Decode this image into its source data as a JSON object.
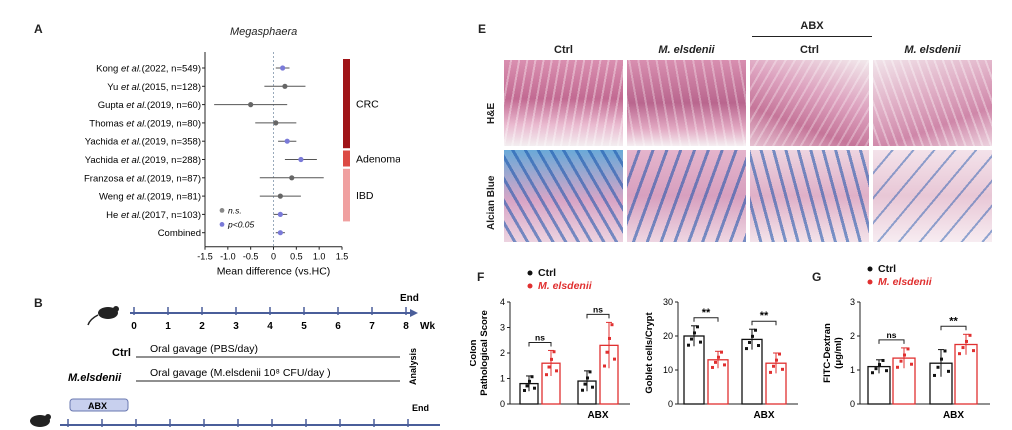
{
  "panelA": {
    "label": "A",
    "title": "Megasphaera",
    "studies": [
      {
        "pre": "Kong ",
        "etal": "et al.",
        "post": "(2022, n=549)",
        "mean": 0.2,
        "lo": 0.05,
        "hi": 0.35,
        "sig": true
      },
      {
        "pre": "Yu ",
        "etal": "et al.",
        "post": "(2015, n=128)",
        "mean": 0.25,
        "lo": -0.2,
        "hi": 0.7,
        "sig": false
      },
      {
        "pre": "Gupta ",
        "etal": "et al.",
        "post": "(2019, n=60)",
        "mean": -0.5,
        "lo": -1.3,
        "hi": 0.3,
        "sig": false
      },
      {
        "pre": "Thomas ",
        "etal": "et al.",
        "post": "(2019, n=80)",
        "mean": 0.05,
        "lo": -0.4,
        "hi": 0.5,
        "sig": false
      },
      {
        "pre": "Yachida ",
        "etal": "et al.",
        "post": "(2019, n=358)",
        "mean": 0.3,
        "lo": 0.1,
        "hi": 0.5,
        "sig": true
      },
      {
        "pre": "Yachida ",
        "etal": "et al.",
        "post": "(2019, n=288)",
        "mean": 0.6,
        "lo": 0.25,
        "hi": 0.95,
        "sig": true
      },
      {
        "pre": "Franzosa ",
        "etal": "et al.",
        "post": "(2019, n=87)",
        "mean": 0.4,
        "lo": -0.3,
        "hi": 1.1,
        "sig": false
      },
      {
        "pre": "Weng ",
        "etal": "et al.",
        "post": "(2019, n=81)",
        "mean": 0.15,
        "lo": -0.3,
        "hi": 0.6,
        "sig": false
      },
      {
        "pre": "He ",
        "etal": "et al.",
        "post": "(2017, n=103)",
        "mean": 0.15,
        "lo": 0.0,
        "hi": 0.3,
        "sig": true
      },
      {
        "pre": "Combined",
        "etal": "",
        "post": "",
        "mean": 0.15,
        "lo": 0.05,
        "hi": 0.25,
        "sig": true
      }
    ],
    "legend": [
      {
        "text": "n.s.",
        "color": "#888888"
      },
      {
        "text": "p<0.05",
        "color": "#7a7ad8"
      }
    ],
    "xlabel": "Mean difference (vs.HC)",
    "xticks": [
      "-1.5",
      "-1.0",
      "-0.5",
      "0",
      "0.5",
      "1.0",
      "1.5"
    ],
    "xrange": [
      -1.5,
      1.5
    ],
    "groups": [
      {
        "label": "CRC",
        "color": "#a01418",
        "from": 0,
        "to": 4
      },
      {
        "label": "Adenoma",
        "color": "#dc4a44",
        "from": 5,
        "to": 5
      },
      {
        "label": "IBD",
        "color": "#f0a0a0",
        "from": 6,
        "to": 8
      }
    ]
  },
  "panelB": {
    "label": "B",
    "end": "End",
    "wk": "Wk",
    "weeks": [
      "0",
      "1",
      "2",
      "3",
      "4",
      "5",
      "6",
      "7",
      "8"
    ],
    "ctrl_label": "Ctrl",
    "ctrl_text": "Oral gavage  (PBS/day)",
    "me_label": "M.elsdenii",
    "me_text": "Oral gavage  (M.elsdenii  10⁸ CFU/day )",
    "analysis": "Analysis",
    "abx": "ABX",
    "end2": "End"
  },
  "panelE": {
    "label": "E",
    "abx": "ABX",
    "cols": [
      "Ctrl",
      "M. elsdenii",
      "Ctrl",
      "M. elsdenii"
    ],
    "rows": [
      "H&E",
      "Alcian Blue"
    ]
  },
  "panelF": {
    "label": "F",
    "legend": [
      {
        "text": "Ctrl",
        "color": "#111111"
      },
      {
        "text": "M. elsdenii",
        "color": "#e03030"
      }
    ]
  },
  "panelG": {
    "label": "G",
    "legend": [
      {
        "text": "Ctrl",
        "color": "#111111"
      },
      {
        "text": "M. elsdenii",
        "color": "#e03030"
      }
    ]
  },
  "chart_data": [
    {
      "type": "bar",
      "ylabel": "Colon Pathological Score",
      "ylim": [
        0,
        4
      ],
      "yticks": [
        "0",
        "1",
        "2",
        "3",
        "4"
      ],
      "categories": [
        "",
        "ABX"
      ],
      "series": [
        {
          "name": "Ctrl",
          "color": "#111111",
          "values": [
            0.8,
            0.9
          ],
          "err": [
            0.3,
            0.4
          ]
        },
        {
          "name": "M. elsdenii",
          "color": "#e03030",
          "values": [
            1.6,
            2.3
          ],
          "err": [
            0.5,
            0.9
          ]
        }
      ],
      "annotations": [
        "ns",
        "ns"
      ]
    },
    {
      "type": "bar",
      "ylabel": "Goblet cells/Crypt",
      "ylim": [
        0,
        30
      ],
      "yticks": [
        "0",
        "10",
        "20",
        "30"
      ],
      "categories": [
        "",
        "ABX"
      ],
      "series": [
        {
          "name": "Ctrl",
          "color": "#111111",
          "values": [
            20,
            19
          ],
          "err": [
            3,
            3
          ]
        },
        {
          "name": "M. elsdenii",
          "color": "#e03030",
          "values": [
            13,
            12
          ],
          "err": [
            2.5,
            3
          ]
        }
      ],
      "annotations": [
        "**",
        "**"
      ]
    },
    {
      "type": "bar",
      "ylabel": "FITC-Dextran (μg/ml)",
      "ylim": [
        0,
        3
      ],
      "yticks": [
        "0",
        "1",
        "2",
        "3"
      ],
      "categories": [
        "",
        "ABX"
      ],
      "series": [
        {
          "name": "Ctrl",
          "color": "#111111",
          "values": [
            1.1,
            1.2
          ],
          "err": [
            0.2,
            0.4
          ]
        },
        {
          "name": "M. elsdenii",
          "color": "#e03030",
          "values": [
            1.35,
            1.75
          ],
          "err": [
            0.3,
            0.3
          ]
        }
      ],
      "annotations": [
        "ns",
        "**"
      ]
    }
  ]
}
